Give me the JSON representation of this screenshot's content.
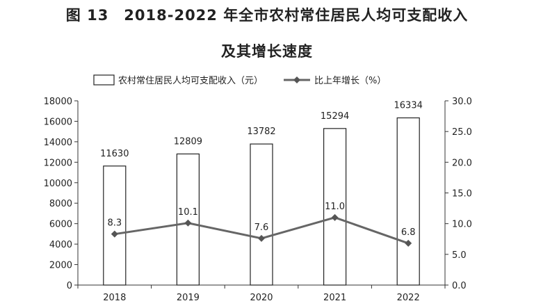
{
  "figure": {
    "title_line1": "图 13　2018-2022 年全市农村常住居民人均可支配收入",
    "title_line2": "及其增长速度"
  },
  "chart_data": {
    "type": "bar",
    "categories": [
      "2018",
      "2019",
      "2020",
      "2021",
      "2022"
    ],
    "series": [
      {
        "name": "农村常住居民人均可支配收入（元）",
        "type": "bar",
        "axis": "left",
        "values": [
          11630,
          12809,
          13782,
          15294,
          16334
        ],
        "labels": [
          "11630",
          "12809",
          "13782",
          "15294",
          "16334"
        ]
      },
      {
        "name": "比上年增长（%）",
        "type": "line",
        "axis": "right",
        "values": [
          8.3,
          10.1,
          7.6,
          11.0,
          6.8
        ],
        "labels": [
          "8.3",
          "10.1",
          "7.6",
          "11.0",
          "6.8"
        ],
        "color": "#666666"
      }
    ],
    "left_axis": {
      "ylim": [
        0,
        18000
      ],
      "ticks": [
        "0",
        "2000",
        "4000",
        "6000",
        "8000",
        "10000",
        "12000",
        "14000",
        "16000",
        "18000"
      ]
    },
    "right_axis": {
      "ylim": [
        0,
        30
      ],
      "ticks": [
        "0.0",
        "5.0",
        "10.0",
        "15.0",
        "20.0",
        "25.0",
        "30.0"
      ]
    },
    "legend_position": "top",
    "grid": false
  }
}
